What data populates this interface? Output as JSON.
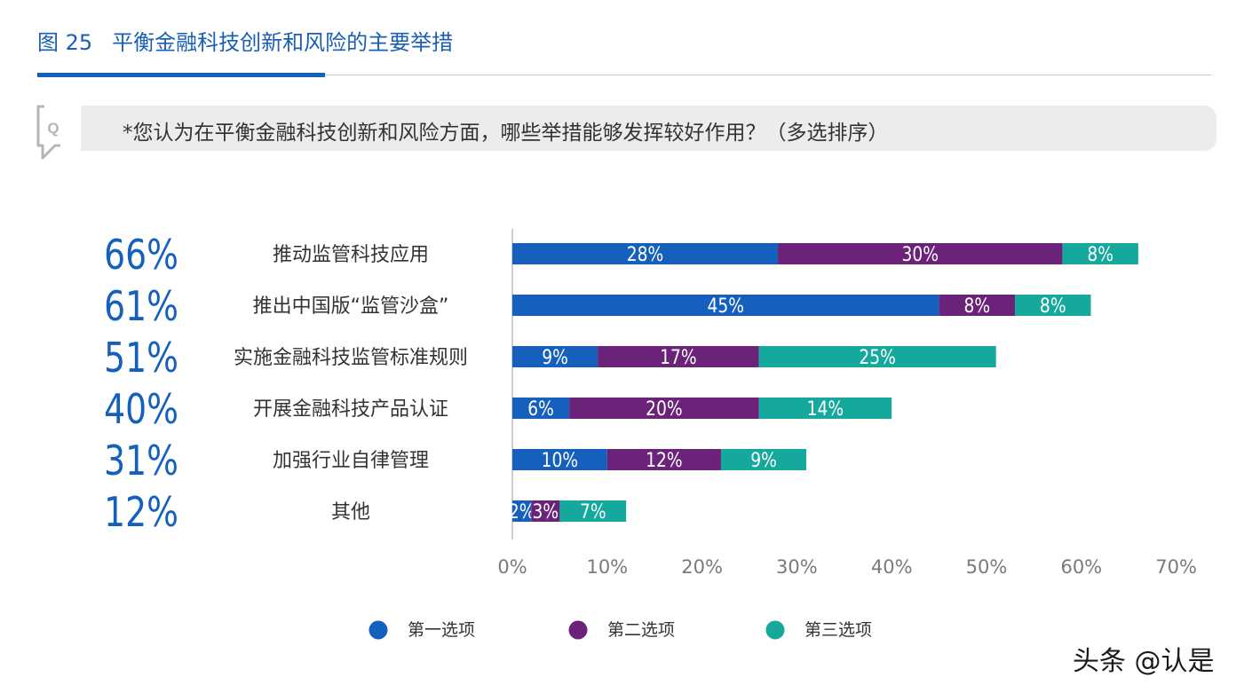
{
  "figure": {
    "number": "图 25",
    "title": "平衡金融科技创新和风险的主要举措"
  },
  "question": {
    "icon_name": "q-speech-icon",
    "icon_letter": "Q",
    "text": "*您认为在平衡金融科技创新和风险方面，哪些举措能够发挥较好作用？（多选排序）"
  },
  "watermark": "头条 @认是",
  "chart_data": {
    "type": "bar",
    "orientation": "horizontal",
    "stacked": true,
    "categories": [
      "推动监管科技应用",
      "推出中国版“监管沙盒”",
      "实施金融科技监管标准规则",
      "开展金融科技产品认证",
      "加强行业自律管理",
      "其他"
    ],
    "totals": [
      "66%",
      "61%",
      "51%",
      "40%",
      "31%",
      "12%"
    ],
    "series": [
      {
        "name": "第一选项",
        "color": "#1560bd",
        "values": [
          28,
          45,
          9,
          6,
          10,
          2
        ]
      },
      {
        "name": "第二选项",
        "color": "#6b2279",
        "values": [
          30,
          8,
          17,
          20,
          12,
          3
        ]
      },
      {
        "name": "第三选项",
        "color": "#15a89c",
        "values": [
          8,
          8,
          25,
          14,
          9,
          7
        ]
      }
    ],
    "xlim": [
      0,
      70
    ],
    "xticks": [
      "0%",
      "10%",
      "20%",
      "30%",
      "40%",
      "50%",
      "60%",
      "70%"
    ],
    "value_suffix": "%",
    "grid": false,
    "legend_position": "bottom"
  }
}
